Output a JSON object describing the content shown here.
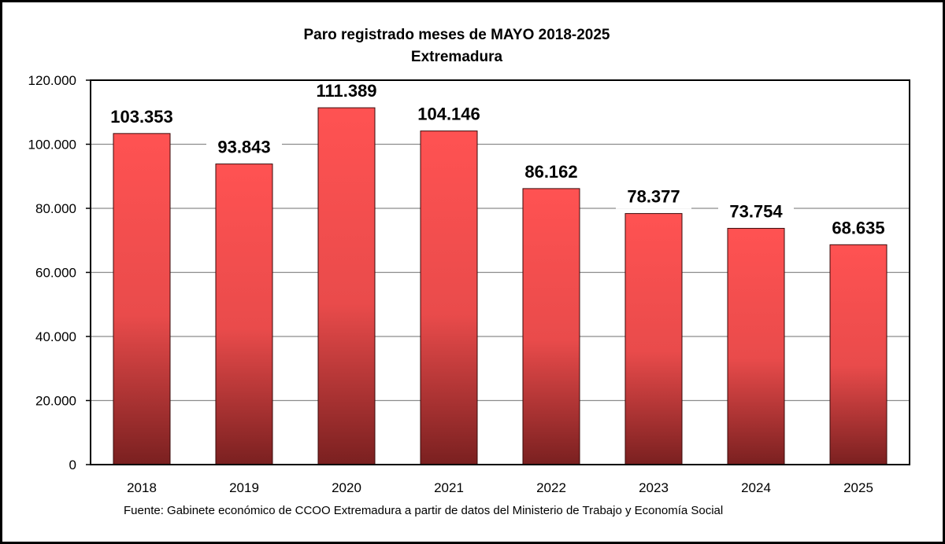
{
  "chart_data": {
    "type": "bar",
    "title": "Paro registrado meses de MAYO 2018-2025",
    "subtitle": "Extremadura",
    "categories": [
      "2018",
      "2019",
      "2020",
      "2021",
      "2022",
      "2023",
      "2024",
      "2025"
    ],
    "values": [
      103353,
      93843,
      111389,
      104146,
      86162,
      78377,
      73754,
      68635
    ],
    "data_labels": [
      "103.353",
      "93.843",
      "111.389",
      "104.146",
      "86.162",
      "78.377",
      "73.754",
      "68.635"
    ],
    "ylim": [
      0,
      120000
    ],
    "yticks": [
      0,
      20000,
      40000,
      60000,
      80000,
      100000,
      120000
    ],
    "ytick_labels": [
      "0",
      "20.000",
      "40.000",
      "60.000",
      "80.000",
      "100.000",
      "120.000"
    ],
    "xlabel": "",
    "ylabel": "",
    "grid": true,
    "legend": "none",
    "bar_color_top": "#ff5252",
    "bar_color_bottom": "#7a2020"
  },
  "footer": {
    "source": "Fuente: Gabinete económico de CCOO Extremadura a partir de datos del Ministerio de Trabajo y Economía Social"
  }
}
